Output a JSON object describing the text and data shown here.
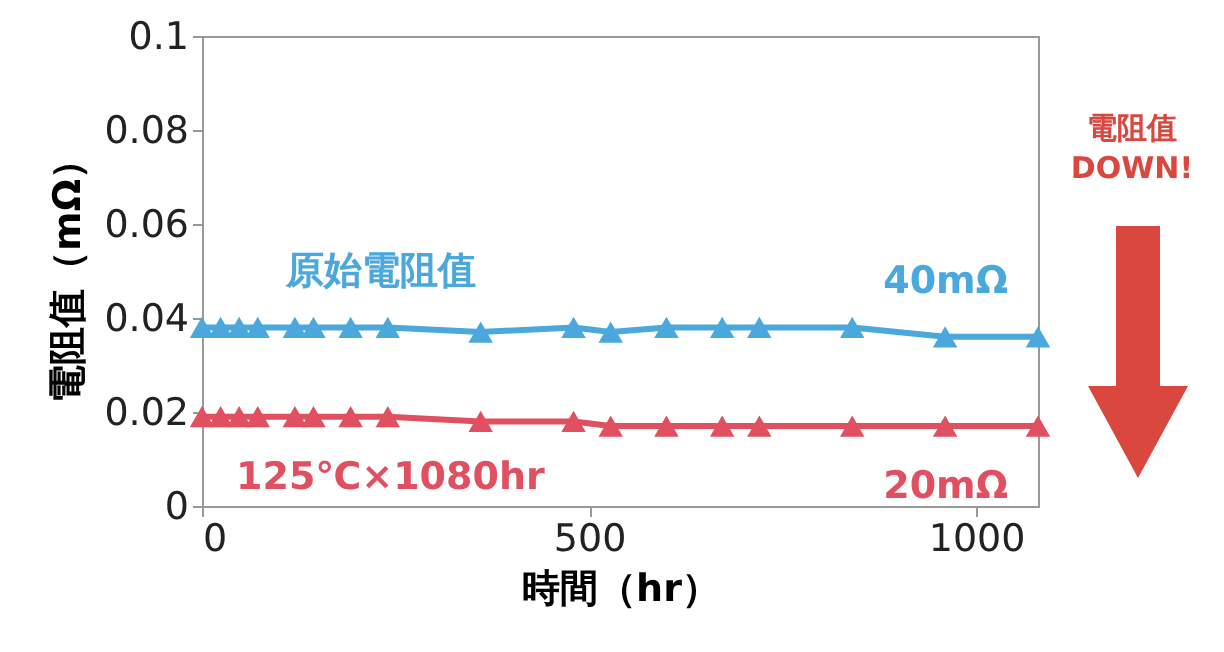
{
  "chart_data": {
    "type": "line",
    "xlabel": "時間（hr）",
    "ylabel": "電阻值（mΩ）",
    "x": [
      0,
      24,
      48,
      72,
      120,
      144,
      192,
      240,
      360,
      480,
      528,
      600,
      672,
      720,
      840,
      960,
      1080
    ],
    "series": [
      {
        "name": "原始電阻值",
        "color": "#4aa8dc",
        "values": [
          0.038,
          0.038,
          0.038,
          0.038,
          0.038,
          0.038,
          0.038,
          0.038,
          0.037,
          0.038,
          0.037,
          0.038,
          0.038,
          0.038,
          0.038,
          0.036,
          0.036
        ]
      },
      {
        "name": "125℃×1080hr",
        "color": "#e05060",
        "values": [
          0.019,
          0.019,
          0.019,
          0.019,
          0.019,
          0.019,
          0.019,
          0.019,
          0.018,
          0.018,
          0.017,
          0.017,
          0.017,
          0.017,
          0.017,
          0.017,
          0.017
        ]
      }
    ],
    "annotations": [
      "40mΩ",
      "20mΩ",
      "電阻值",
      "DOWN!"
    ],
    "xlim": [
      0,
      1080
    ],
    "xticks": [
      0,
      500,
      1000
    ],
    "ylim": [
      0,
      0.1
    ],
    "yticks": [
      0,
      0.02,
      0.04,
      0.06,
      0.08,
      0.1
    ],
    "marker": "triangle",
    "grid": false
  }
}
